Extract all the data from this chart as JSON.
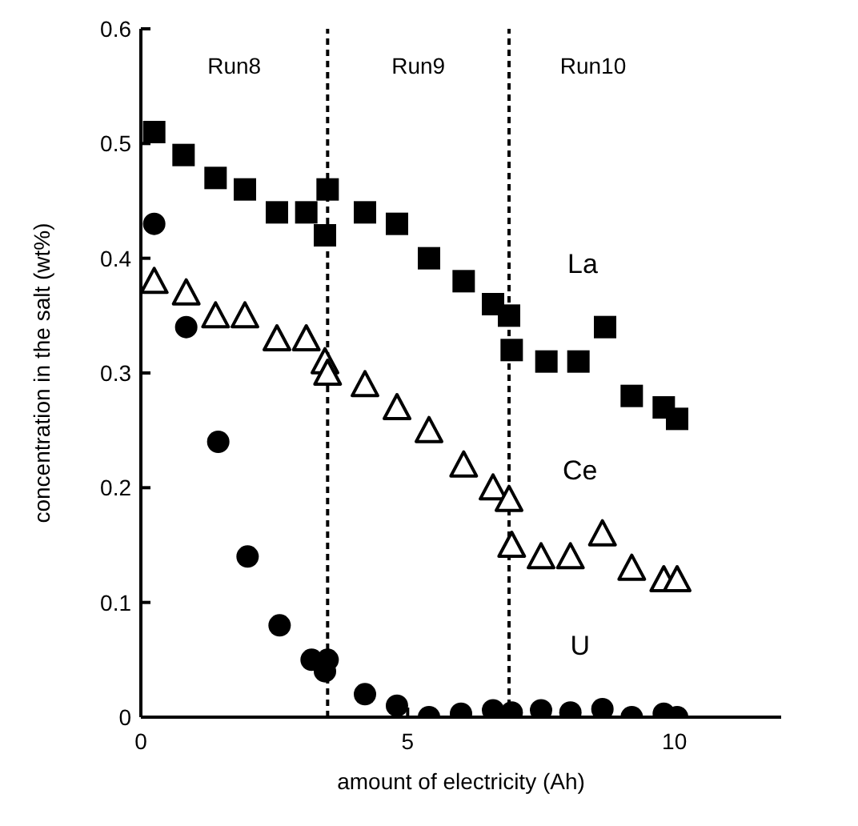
{
  "chart_data": {
    "type": "scatter",
    "xlabel": "amount of electricity (Ah)",
    "ylabel": "concentration in the salt (wt%)",
    "xlim": [
      0,
      12
    ],
    "xticks": [
      0,
      5,
      10
    ],
    "ylim": [
      0,
      0.6
    ],
    "yticks": [
      0,
      0.1,
      0.2,
      0.3,
      0.4,
      0.5,
      0.6
    ],
    "grid": false,
    "legend": false,
    "series": [
      {
        "name": "La",
        "color": "#000000",
        "marker": "square",
        "x": [
          0.25,
          0.8,
          1.4,
          1.95,
          2.55,
          3.1,
          3.45,
          3.5,
          4.2,
          4.8,
          5.4,
          6.05,
          6.6,
          6.9,
          6.95,
          7.6,
          8.2,
          8.7,
          9.2,
          9.8,
          10.05
        ],
        "values": [
          0.51,
          0.49,
          0.47,
          0.46,
          0.44,
          0.44,
          0.42,
          0.46,
          0.44,
          0.43,
          0.4,
          0.38,
          0.36,
          0.35,
          0.32,
          0.31,
          0.31,
          0.34,
          0.28,
          0.27,
          0.26
        ]
      },
      {
        "name": "Ce",
        "color": "#000000",
        "marker": "triangle",
        "x": [
          0.25,
          0.85,
          1.4,
          1.95,
          2.55,
          3.1,
          3.45,
          3.5,
          4.2,
          4.8,
          5.4,
          6.05,
          6.6,
          6.9,
          6.95,
          7.5,
          8.05,
          8.65,
          9.2,
          9.8,
          10.05
        ],
        "values": [
          0.38,
          0.37,
          0.35,
          0.35,
          0.33,
          0.33,
          0.31,
          0.3,
          0.29,
          0.27,
          0.25,
          0.22,
          0.2,
          0.19,
          0.15,
          0.14,
          0.14,
          0.16,
          0.13,
          0.12,
          0.12
        ]
      },
      {
        "name": "U",
        "color": "#000000",
        "marker": "circle",
        "x": [
          0.25,
          0.85,
          1.45,
          2.0,
          2.6,
          3.2,
          3.45,
          3.5,
          4.2,
          4.8,
          5.4,
          6.0,
          6.6,
          6.95,
          7.5,
          8.05,
          8.65,
          9.2,
          9.8,
          10.05
        ],
        "values": [
          0.43,
          0.34,
          0.24,
          0.14,
          0.08,
          0.05,
          0.04,
          0.05,
          0.02,
          0.01,
          0.0,
          0.003,
          0.006,
          0.004,
          0.006,
          0.004,
          0.007,
          0.0,
          0.003,
          0.0
        ]
      }
    ],
    "ref_lines": [
      {
        "axis": "x",
        "value": 3.5,
        "line_style": "dashed",
        "color": "#000000"
      },
      {
        "axis": "x",
        "value": 6.9,
        "line_style": "dashed",
        "color": "#000000"
      }
    ],
    "annotations": [
      "Run8",
      "Run9",
      "Run10"
    ]
  }
}
